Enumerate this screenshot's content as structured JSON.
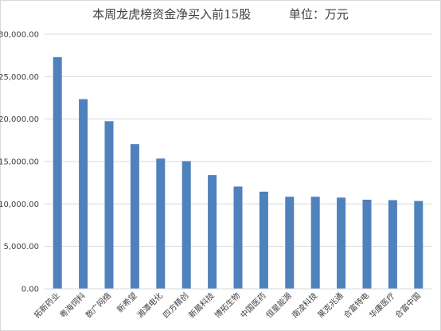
{
  "chart_data": {
    "type": "bar",
    "title": "本周龙虎榜资金净买入前15股          单位：万元",
    "categories": [
      "拓新药业",
      "粤海饲料",
      "数广网络",
      "新希望",
      "湘潭电化",
      "四方精创",
      "新晨科技",
      "博拓生物",
      "中国医药",
      "恒星能源",
      "南凌科技",
      "莱克兆通",
      "合富特电",
      "华康医疗",
      "合富中国"
    ],
    "values": [
      27300,
      22350,
      19750,
      17050,
      15350,
      15050,
      13400,
      12050,
      11450,
      10850,
      10850,
      10750,
      10500,
      10450,
      10350
    ],
    "ylim": [
      0,
      30000
    ],
    "yticks": [
      "0.00",
      "5,000.00",
      "10,000.00",
      "15,000.00",
      "20,000.00",
      "25,000.00",
      "30,000.00"
    ],
    "xlabel": "",
    "ylabel": "",
    "grid": true,
    "bar_color": "#4f81bd"
  }
}
